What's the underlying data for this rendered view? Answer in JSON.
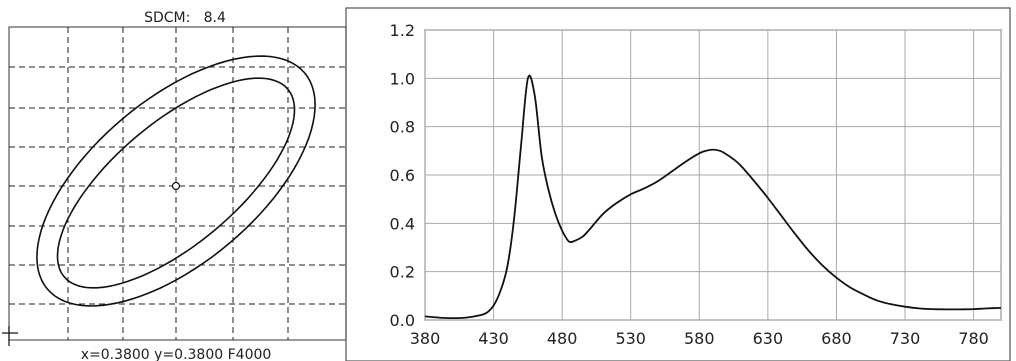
{
  "chart_data": [
    {
      "type": "scatter",
      "title": "SDCM:   8.4",
      "footer": "x=0.3800 y=0.3800 F4000",
      "center_marker": [
        0.38,
        0.38
      ],
      "ellipses": [
        {
          "name": "",
          "center": [
            0.38,
            0.38
          ]
        },
        {
          "name": "",
          "center": [
            0.38,
            0.38
          ]
        }
      ],
      "grid": "dashed",
      "corner_marker": "+"
    },
    {
      "type": "line",
      "xlabel": "",
      "ylabel": "",
      "xlim": [
        380,
        800
      ],
      "ylim": [
        0,
        1.2
      ],
      "x_ticks": [
        "380",
        "430",
        "480",
        "530",
        "580",
        "630",
        "680",
        "730",
        "780"
      ],
      "y_ticks": [
        "0.0",
        "0.2",
        "0.4",
        "0.6",
        "0.8",
        "1.0",
        "1.2"
      ],
      "grid": true,
      "series": [
        {
          "name": "",
          "x": [
            380,
            390,
            400,
            410,
            420,
            425,
            430,
            435,
            440,
            445,
            450,
            455,
            460,
            465,
            470,
            475,
            480,
            485,
            490,
            495,
            500,
            510,
            520,
            530,
            540,
            550,
            560,
            570,
            580,
            585,
            590,
            595,
            600,
            605,
            610,
            620,
            630,
            640,
            650,
            660,
            670,
            680,
            690,
            700,
            710,
            720,
            730,
            740,
            750,
            760,
            770,
            780,
            790,
            800
          ],
          "y": [
            0.015,
            0.01,
            0.008,
            0.01,
            0.02,
            0.03,
            0.06,
            0.12,
            0.22,
            0.42,
            0.72,
            1.0,
            0.93,
            0.68,
            0.54,
            0.44,
            0.37,
            0.325,
            0.33,
            0.345,
            0.375,
            0.44,
            0.485,
            0.52,
            0.545,
            0.575,
            0.615,
            0.655,
            0.69,
            0.7,
            0.705,
            0.7,
            0.685,
            0.665,
            0.64,
            0.575,
            0.505,
            0.43,
            0.355,
            0.285,
            0.225,
            0.175,
            0.135,
            0.105,
            0.08,
            0.065,
            0.055,
            0.048,
            0.045,
            0.044,
            0.044,
            0.045,
            0.048,
            0.05
          ]
        }
      ]
    }
  ]
}
